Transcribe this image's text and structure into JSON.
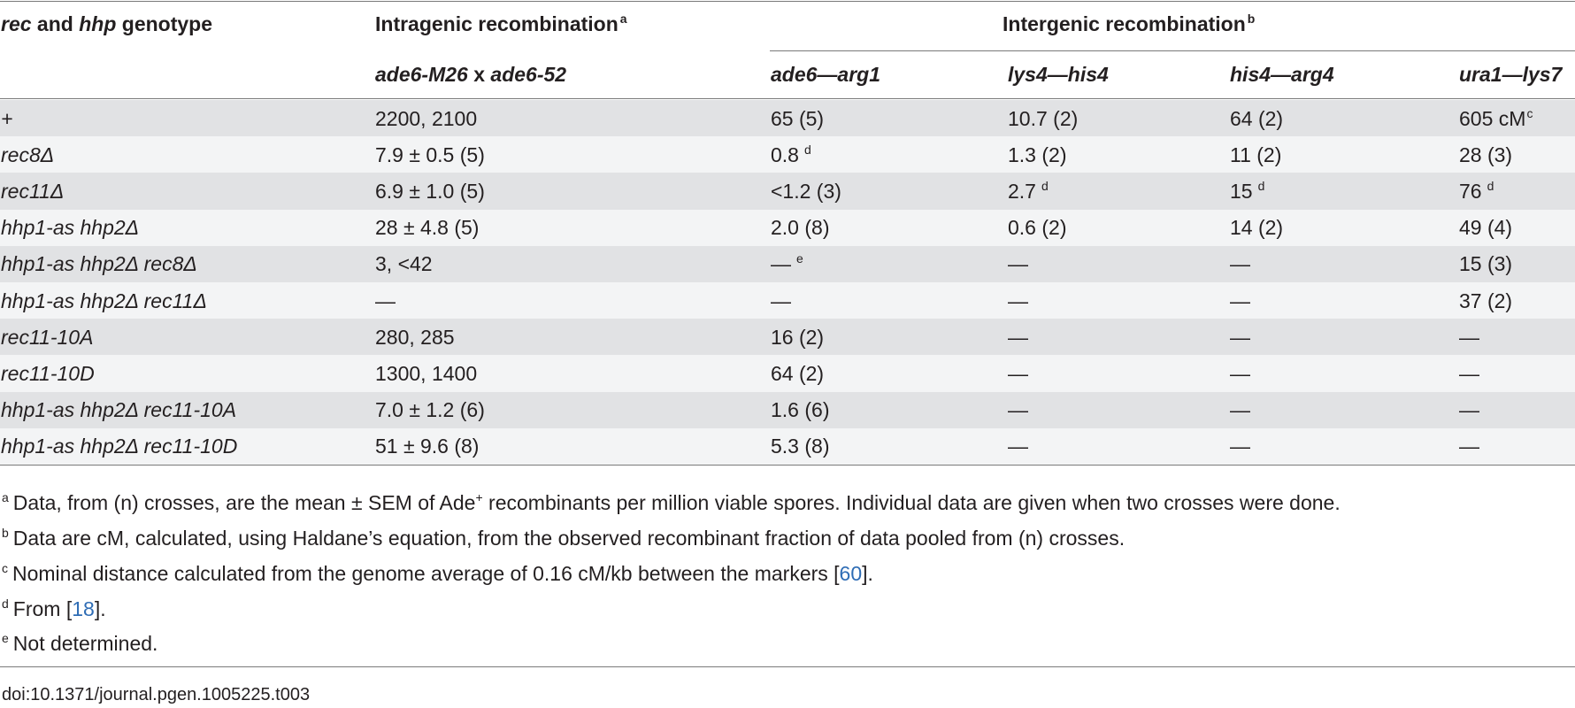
{
  "header": {
    "genotype_label_pre": "rec",
    "genotype_label_and": " and ",
    "genotype_label_mid": "hhp",
    "genotype_label_post": " genotype",
    "intragenic": "Intragenic recombination",
    "intragenic_note": "a",
    "intergenic": "Intergenic recombination",
    "intergenic_note": "b",
    "sub_intragenic_a": "ade6-M26",
    "sub_intragenic_x": " x ",
    "sub_intragenic_b": "ade6-52",
    "sub_cols": [
      "ade6—arg1",
      "lys4—his4",
      "his4—arg4",
      "ura1—lys7"
    ]
  },
  "rows": [
    {
      "genotype": "+",
      "intragenic": "2200, 2100",
      "c1": "65 (5)",
      "c1n": "",
      "c2": "10.7 (2)",
      "c2n": "",
      "c3": "64 (2)",
      "c3n": "",
      "c4": "605 cM",
      "c4n": "c"
    },
    {
      "genotype": "rec8Δ",
      "intragenic": "7.9 ± 0.5 (5)",
      "c1": "0.8",
      "c1n": "d",
      "c2": "1.3 (2)",
      "c2n": "",
      "c3": "11 (2)",
      "c3n": "",
      "c4": "28 (3)",
      "c4n": ""
    },
    {
      "genotype": "rec11Δ",
      "intragenic": "6.9 ± 1.0 (5)",
      "c1": "<1.2 (3)",
      "c1n": "",
      "c2": "2.7",
      "c2n": "d",
      "c3": "15",
      "c3n": "d",
      "c4": "76",
      "c4n": "d"
    },
    {
      "genotype": "hhp1-as hhp2Δ",
      "intragenic": "28 ± 4.8 (5)",
      "c1": "2.0 (8)",
      "c1n": "",
      "c2": "0.6 (2)",
      "c2n": "",
      "c3": "14 (2)",
      "c3n": "",
      "c4": "49 (4)",
      "c4n": ""
    },
    {
      "genotype": "hhp1-as hhp2Δ rec8Δ",
      "intragenic": "3, <42",
      "c1": "—",
      "c1n": "e",
      "c2": "—",
      "c2n": "",
      "c3": "—",
      "c3n": "",
      "c4": "15 (3)",
      "c4n": ""
    },
    {
      "genotype": "hhp1-as hhp2Δ rec11Δ",
      "intragenic": "—",
      "c1": "—",
      "c1n": "",
      "c2": "—",
      "c2n": "",
      "c3": "—",
      "c3n": "",
      "c4": "37 (2)",
      "c4n": ""
    },
    {
      "genotype": "rec11-10A",
      "intragenic": "280, 285",
      "c1": "16 (2)",
      "c1n": "",
      "c2": "—",
      "c2n": "",
      "c3": "—",
      "c3n": "",
      "c4": "—",
      "c4n": ""
    },
    {
      "genotype": "rec11-10D",
      "intragenic": "1300, 1400",
      "c1": "64 (2)",
      "c1n": "",
      "c2": "—",
      "c2n": "",
      "c3": "—",
      "c3n": "",
      "c4": "—",
      "c4n": ""
    },
    {
      "genotype": "hhp1-as hhp2Δ rec11-10A",
      "intragenic": "7.0 ± 1.2 (6)",
      "c1": "1.6 (6)",
      "c1n": "",
      "c2": "—",
      "c2n": "",
      "c3": "—",
      "c3n": "",
      "c4": "—",
      "c4n": ""
    },
    {
      "genotype": "hhp1-as hhp2Δ rec11-10D",
      "intragenic": "51 ± 9.6 (8)",
      "c1": "5.3 (8)",
      "c1n": "",
      "c2": "—",
      "c2n": "",
      "c3": "—",
      "c3n": "",
      "c4": "—",
      "c4n": ""
    }
  ],
  "footnotes": {
    "a": {
      "mark": "a",
      "text_pre": "Data, from (n) crosses, are the mean ± SEM of Ade",
      "sup": "+",
      "text_post": " recombinants per million viable spores. Individual data are given when two crosses were done."
    },
    "b": {
      "mark": "b",
      "text": "Data are cM, calculated, using Haldane’s equation, from the observed recombinant fraction of data pooled from (n) crosses."
    },
    "c": {
      "mark": "c",
      "text_pre": "Nominal distance calculated from the genome average of 0.16 cM/kb between the markers [",
      "ref": "60",
      "text_post": "]."
    },
    "d": {
      "mark": "d",
      "text_pre": "From [",
      "ref": "18",
      "text_post": "]."
    },
    "e": {
      "mark": "e",
      "text": "Not determined."
    }
  },
  "doi": "doi:10.1371/journal.pgen.1005225.t003",
  "colors": {
    "band_dark": "#e1e2e4",
    "band_light": "#f3f4f5",
    "link": "#2f6db5",
    "rule": "#7a7a7a"
  }
}
